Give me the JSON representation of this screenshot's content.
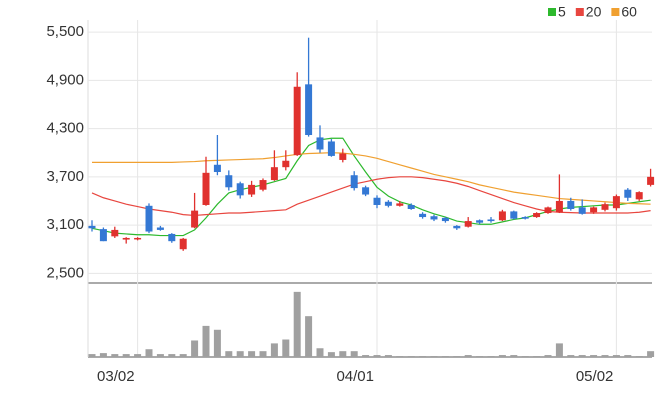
{
  "chart_data": {
    "type": "candlestick",
    "categories": [
      null,
      null,
      null,
      null,
      "03/02",
      null,
      null,
      null,
      null,
      null,
      null,
      null,
      null,
      null,
      null,
      null,
      null,
      null,
      null,
      null,
      null,
      null,
      null,
      null,
      null,
      "04/01",
      null,
      null,
      null,
      null,
      null,
      null,
      null,
      null,
      null,
      null,
      null,
      null,
      null,
      null,
      null,
      null,
      null,
      null,
      null,
      null,
      "05/02",
      null,
      null,
      null
    ],
    "open": [
      3090,
      3050,
      2960,
      2920,
      2930,
      3340,
      3070,
      2990,
      2800,
      3070,
      3350,
      3850,
      3720,
      3620,
      3480,
      3540,
      3660,
      3820,
      3970,
      4850,
      4190,
      4140,
      3910,
      3720,
      3570,
      3440,
      3390,
      3340,
      3350,
      3240,
      3210,
      3190,
      3090,
      3080,
      3160,
      3170,
      3160,
      3270,
      3200,
      3200,
      3250,
      3260,
      3400,
      3320,
      3260,
      3290,
      3310,
      3540,
      3420,
      3600
    ],
    "high": [
      3160,
      3070,
      3080,
      2950,
      2950,
      3370,
      3090,
      3000,
      2940,
      3500,
      3950,
      4220,
      3780,
      3640,
      3650,
      3680,
      4030,
      4030,
      5000,
      5430,
      4340,
      4170,
      4050,
      3770,
      3590,
      3470,
      3410,
      3400,
      3370,
      3260,
      3230,
      3200,
      3100,
      3200,
      3170,
      3200,
      3290,
      3280,
      3210,
      3260,
      3330,
      3730,
      3440,
      3420,
      3330,
      3380,
      3480,
      3560,
      3520,
      3800
    ],
    "low": [
      3020,
      2900,
      2940,
      2870,
      2910,
      3000,
      3030,
      2880,
      2780,
      3060,
      3340,
      3720,
      3530,
      3430,
      3450,
      3520,
      3650,
      3780,
      3960,
      4200,
      4000,
      3950,
      3880,
      3530,
      3460,
      3310,
      3320,
      3330,
      3290,
      3180,
      3150,
      3130,
      3040,
      3070,
      3110,
      3130,
      3150,
      3170,
      3170,
      3190,
      3240,
      3250,
      3280,
      3230,
      3240,
      3270,
      3280,
      3400,
      3400,
      3580
    ],
    "close": [
      3060,
      2900,
      3040,
      2940,
      2940,
      3020,
      3040,
      2900,
      2930,
      3280,
      3750,
      3760,
      3570,
      3470,
      3600,
      3660,
      3820,
      3900,
      4820,
      4220,
      4040,
      3960,
      3990,
      3560,
      3480,
      3350,
      3340,
      3370,
      3300,
      3200,
      3170,
      3150,
      3060,
      3150,
      3130,
      3150,
      3270,
      3180,
      3180,
      3250,
      3320,
      3400,
      3300,
      3240,
      3320,
      3360,
      3460,
      3440,
      3510,
      3700
    ],
    "up_color": "#e0312e",
    "down_color": "#3478d4",
    "series": [
      {
        "name": "5",
        "color": "#2db92d",
        "values": [
          3060,
          3030,
          3000,
          2990,
          2980,
          2980,
          2970,
          2970,
          2970,
          3040,
          3190,
          3360,
          3500,
          3540,
          3570,
          3600,
          3640,
          3680,
          3900,
          4090,
          4160,
          4180,
          4180,
          3960,
          3760,
          3570,
          3460,
          3390,
          3350,
          3290,
          3240,
          3200,
          3150,
          3130,
          3110,
          3110,
          3140,
          3170,
          3190,
          3230,
          3270,
          3300,
          3320,
          3330,
          3340,
          3350,
          3350,
          3370,
          3390,
          3410
        ]
      },
      {
        "name": "20",
        "color": "#e8463f",
        "values": [
          3500,
          3440,
          3400,
          3360,
          3330,
          3300,
          3280,
          3260,
          3230,
          3220,
          3230,
          3240,
          3250,
          3250,
          3260,
          3270,
          3280,
          3290,
          3360,
          3410,
          3460,
          3510,
          3560,
          3610,
          3640,
          3670,
          3690,
          3700,
          3700,
          3690,
          3670,
          3650,
          3620,
          3580,
          3530,
          3480,
          3430,
          3380,
          3340,
          3300,
          3270,
          3260,
          3255,
          3250,
          3250,
          3250,
          3250,
          3250,
          3260,
          3280
        ]
      },
      {
        "name": "60",
        "color": "#f0a030",
        "values": [
          3880,
          3880,
          3880,
          3880,
          3880,
          3880,
          3880,
          3880,
          3885,
          3890,
          3900,
          3905,
          3910,
          3915,
          3920,
          3925,
          3940,
          3960,
          3980,
          3990,
          3995,
          4000,
          3995,
          3980,
          3960,
          3930,
          3890,
          3850,
          3810,
          3770,
          3730,
          3700,
          3670,
          3640,
          3600,
          3570,
          3540,
          3510,
          3490,
          3470,
          3450,
          3430,
          3420,
          3410,
          3400,
          3390,
          3380,
          3370,
          3365,
          3360
        ]
      }
    ],
    "volume": {
      "color": "#a0a0a0",
      "ylim": [
        0,
        72
      ],
      "values": [
        3,
        4,
        3,
        3,
        3,
        8,
        3,
        3,
        3,
        17,
        32,
        28,
        6,
        6,
        6,
        6,
        14,
        18,
        67,
        42,
        9,
        5,
        6,
        6,
        2,
        2,
        2,
        1,
        1,
        1,
        1,
        1,
        1,
        2,
        1,
        1,
        2,
        2,
        1,
        1,
        2,
        14,
        2,
        2,
        2,
        2,
        2,
        2,
        1,
        6
      ]
    },
    "ylim": [
      2380,
      5650
    ],
    "yticks": [
      {
        "value": 2500,
        "label": "2,500"
      },
      {
        "value": 3100,
        "label": "3,100"
      },
      {
        "value": 3700,
        "label": "3,700"
      },
      {
        "value": 4300,
        "label": "4,300"
      },
      {
        "value": 4900,
        "label": "4,900"
      },
      {
        "value": 5500,
        "label": "5,500"
      }
    ],
    "grid": true
  }
}
